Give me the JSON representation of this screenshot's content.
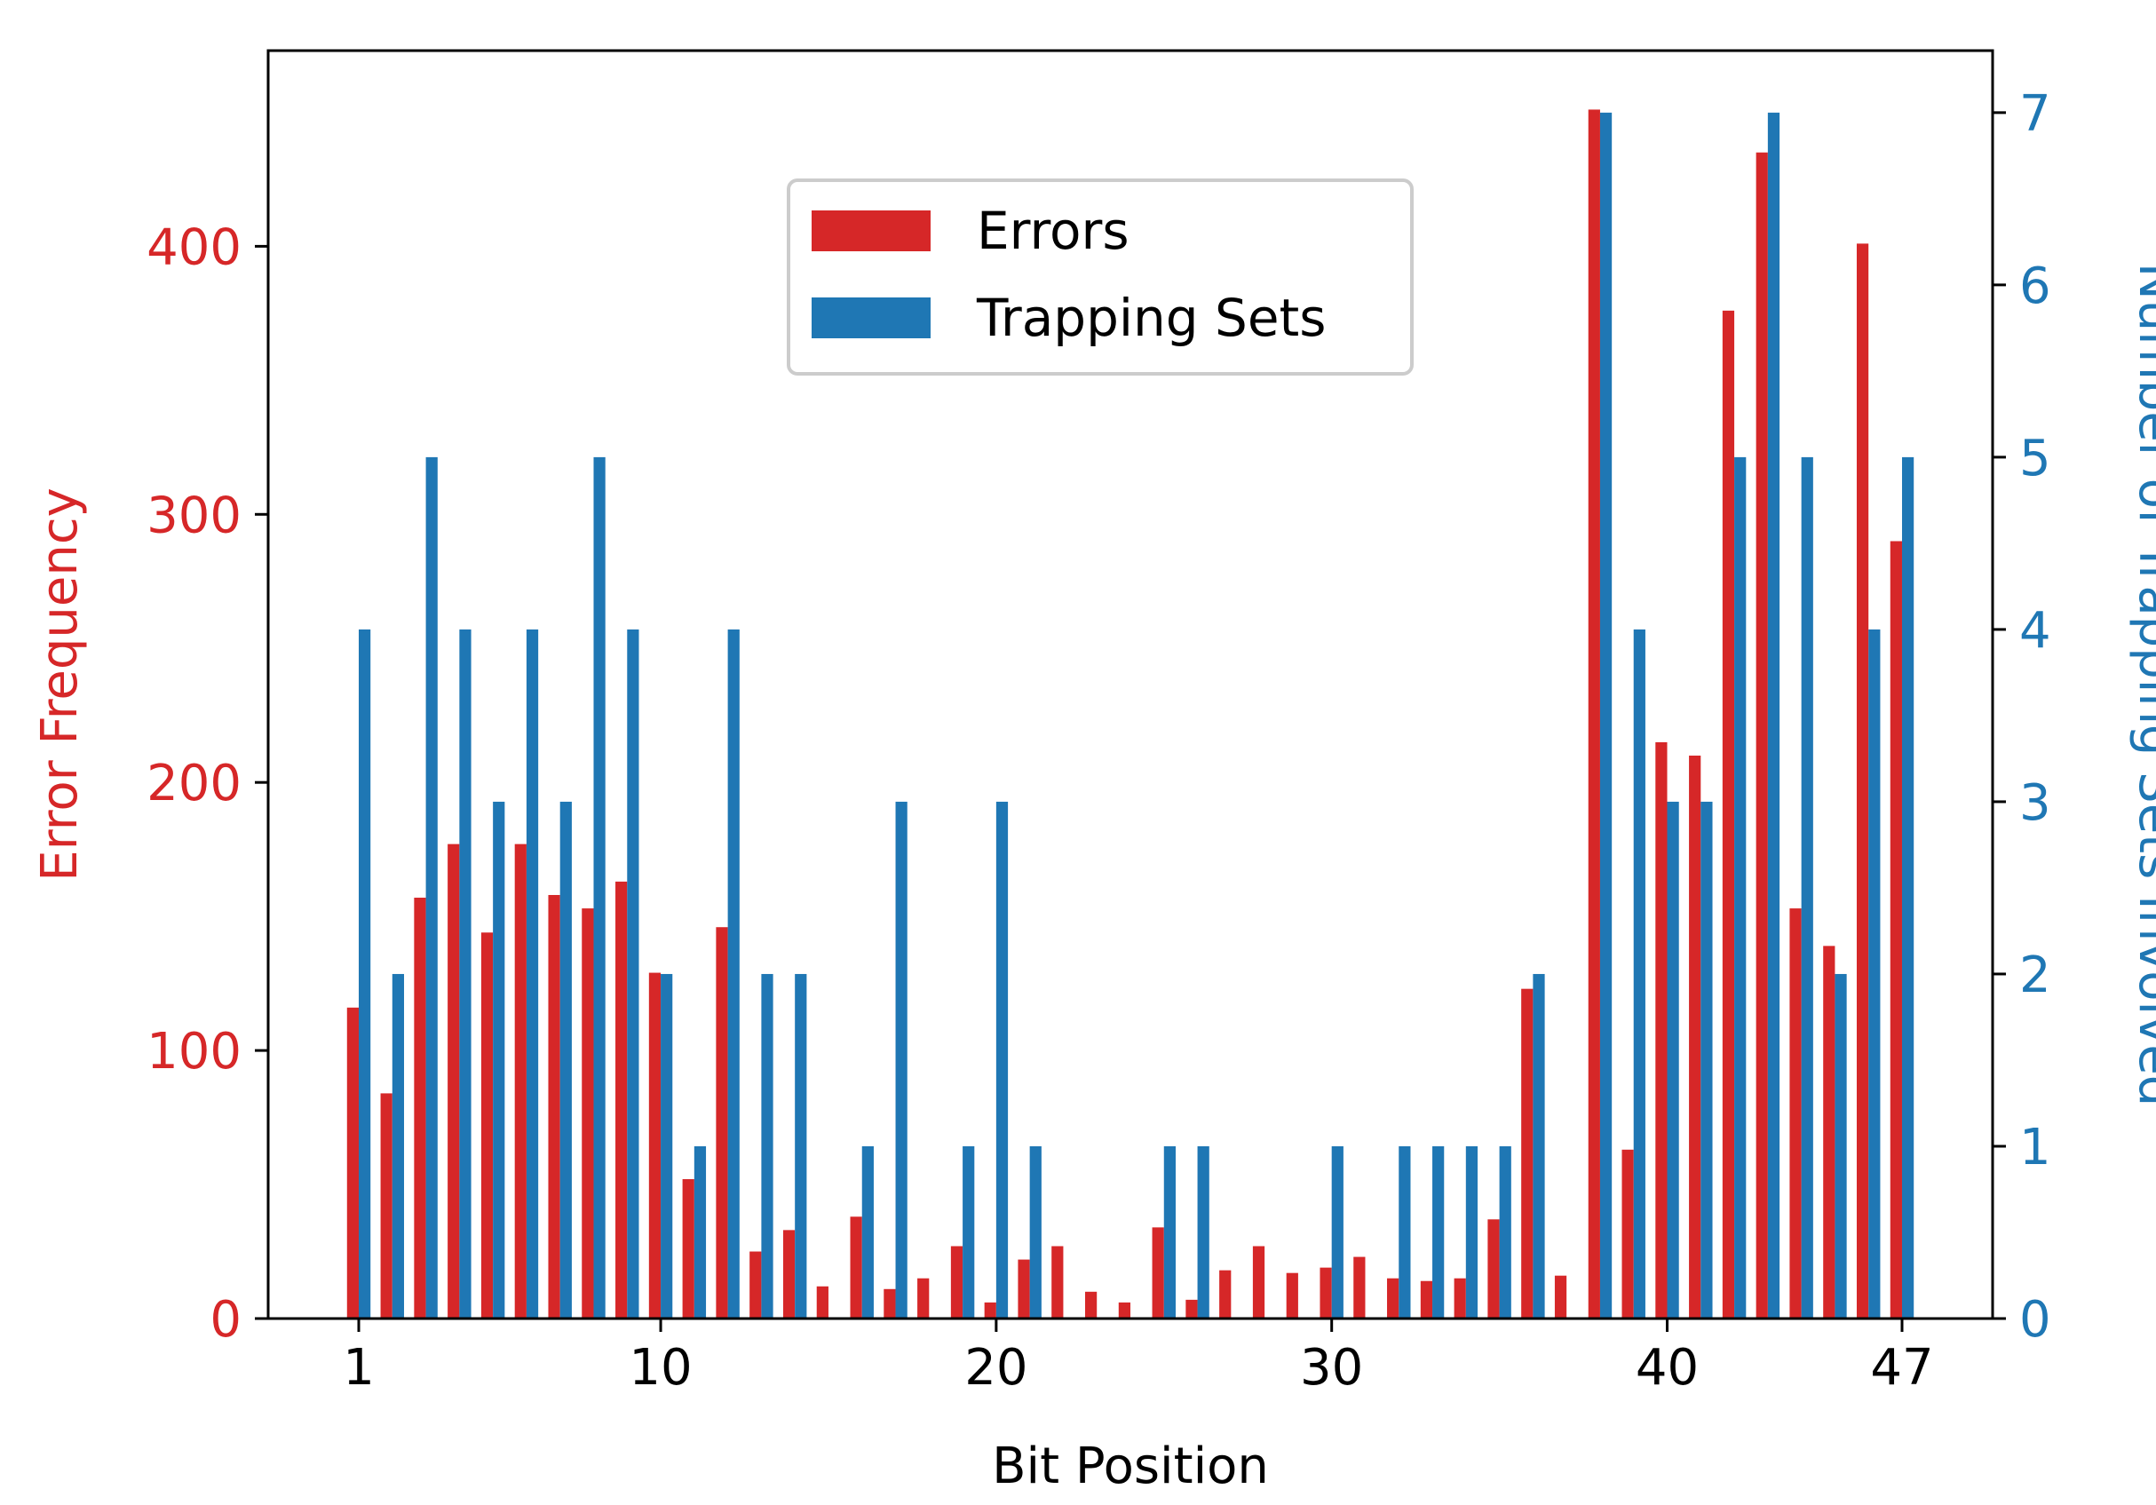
{
  "chart_data": {
    "type": "bar",
    "title": "",
    "xlabel": "Bit Position",
    "ylabel_left": "Error Frequency",
    "ylabel_right": "Number of Trapping Sets Involved",
    "x": [
      1,
      2,
      3,
      4,
      5,
      6,
      7,
      8,
      9,
      10,
      11,
      12,
      13,
      14,
      15,
      16,
      17,
      18,
      19,
      20,
      21,
      22,
      23,
      24,
      25,
      26,
      27,
      28,
      29,
      30,
      31,
      32,
      33,
      34,
      35,
      36,
      37,
      38,
      39,
      40,
      41,
      42,
      43,
      44,
      45,
      46,
      47
    ],
    "xticks": [
      1,
      10,
      20,
      30,
      40,
      47
    ],
    "xlim": [
      -1.7,
      49.7
    ],
    "y_left_ticks": [
      0,
      100,
      200,
      300,
      400
    ],
    "y_right_ticks": [
      0,
      1,
      2,
      3,
      4,
      5,
      6,
      7
    ],
    "ylim_left": [
      0,
      473
    ],
    "ylim_right": [
      0,
      7.36
    ],
    "grid": false,
    "legend_position": "upper center",
    "colors": {
      "errors": "#d62728",
      "trapping_sets": "#1f77b4",
      "axis": "#000000"
    },
    "series": [
      {
        "name": "Errors",
        "axis": "left",
        "values": [
          116,
          84,
          157,
          177,
          144,
          177,
          158,
          153,
          163,
          129,
          52,
          146,
          25,
          33,
          12,
          38,
          11,
          15,
          27,
          6,
          22,
          27,
          10,
          6,
          34,
          7,
          18,
          27,
          17,
          19,
          23,
          15,
          14,
          15,
          37,
          123,
          16,
          451,
          63,
          215,
          210,
          376,
          435,
          153,
          139,
          401,
          290
        ]
      },
      {
        "name": "Trapping Sets",
        "axis": "right",
        "values": [
          4,
          2,
          5,
          4,
          3,
          4,
          3,
          5,
          4,
          2,
          1,
          4,
          2,
          2,
          0,
          1,
          3,
          0,
          1,
          3,
          1,
          0,
          0,
          0,
          1,
          1,
          0,
          0,
          0,
          1,
          0,
          1,
          1,
          1,
          1,
          2,
          0,
          7,
          4,
          3,
          3,
          5,
          7,
          5,
          2,
          4,
          5
        ]
      }
    ]
  }
}
